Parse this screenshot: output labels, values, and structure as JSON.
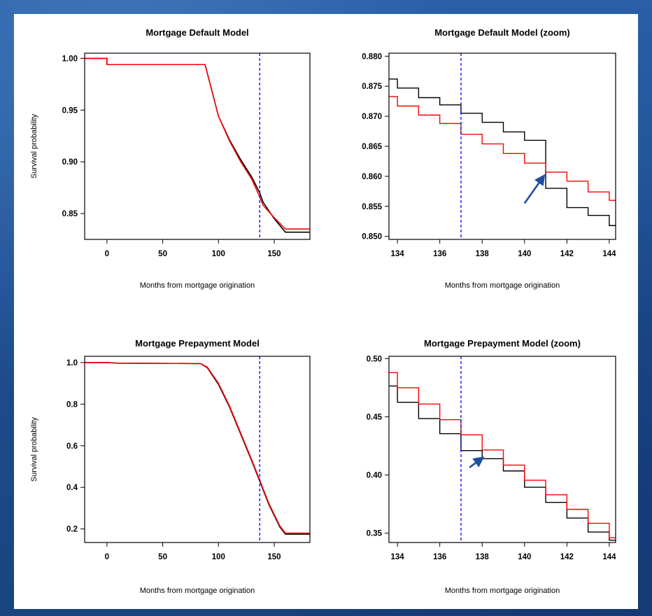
{
  "colors": {
    "model": "#000000",
    "observed": "#ff0000",
    "marker": "#0000ff",
    "arrow": "#1f4fa0"
  },
  "chart_data": [
    {
      "id": "default",
      "type": "line",
      "title": "Mortgage Default Model",
      "xlabel": "Months from mortgage origination",
      "ylabel": "Survival probability",
      "xlim": [
        -20,
        182
      ],
      "ylim": [
        0.825,
        1.005
      ],
      "xticks": [
        0,
        50,
        100,
        150
      ],
      "yticks": [
        0.85,
        0.9,
        0.95,
        1.0
      ],
      "ytick_labels": [
        "0.85",
        "0.90",
        "0.95",
        "1.00"
      ],
      "vline": 137,
      "series": [
        {
          "color": "#000000",
          "x": [
            -20,
            0,
            0,
            88,
            95,
            100,
            110,
            120,
            130,
            137,
            140,
            150,
            160,
            182
          ],
          "y": [
            1.0,
            1.0,
            0.994,
            0.994,
            0.965,
            0.944,
            0.921,
            0.902,
            0.885,
            0.87,
            0.861,
            0.845,
            0.832,
            0.832
          ]
        },
        {
          "color": "#ff0000",
          "x": [
            -20,
            0,
            0,
            88,
            95,
            100,
            110,
            120,
            130,
            137,
            140,
            150,
            160,
            182
          ],
          "y": [
            1.0,
            1.0,
            0.994,
            0.994,
            0.965,
            0.944,
            0.92,
            0.9,
            0.883,
            0.866,
            0.858,
            0.846,
            0.835,
            0.835
          ]
        }
      ]
    },
    {
      "id": "default-zoom",
      "type": "line",
      "title": "Mortgage Default Model (zoom)",
      "xlabel": "Months from mortgage origination",
      "ylabel": "",
      "xlim": [
        133.6,
        144.3
      ],
      "ylim": [
        0.8495,
        0.8805
      ],
      "xticks": [
        134,
        136,
        138,
        140,
        142,
        144
      ],
      "yticks": [
        0.85,
        0.855,
        0.86,
        0.865,
        0.87,
        0.875,
        0.88
      ],
      "ytick_labels": [
        "0.850",
        "0.855",
        "0.860",
        "0.865",
        "0.870",
        "0.875",
        "0.880"
      ],
      "vline": 137,
      "annotation": "arrow",
      "arrow": {
        "from": [
          140.0,
          0.8555
        ],
        "to": [
          140.9,
          0.86
        ]
      },
      "series": [
        {
          "color": "#000000",
          "step": true,
          "x": [
            133.6,
            134,
            135,
            136,
            137,
            138,
            139,
            140,
            141,
            142,
            143,
            144,
            144.3
          ],
          "y": [
            0.8762,
            0.8747,
            0.8731,
            0.8719,
            0.8705,
            0.869,
            0.8674,
            0.866,
            0.858,
            0.8548,
            0.8535,
            0.8518,
            0.8518
          ]
        },
        {
          "color": "#ff0000",
          "step": true,
          "x": [
            133.6,
            134,
            135,
            136,
            137,
            138,
            139,
            140,
            141,
            142,
            143,
            144,
            144.3
          ],
          "y": [
            0.8733,
            0.8717,
            0.8702,
            0.8688,
            0.867,
            0.8654,
            0.8638,
            0.8622,
            0.8607,
            0.8592,
            0.8574,
            0.856,
            0.856
          ]
        }
      ]
    },
    {
      "id": "prepayment",
      "type": "line",
      "title": "Mortgage Prepayment Model",
      "xlabel": "Months from mortgage origination",
      "ylabel": "Survival probability",
      "xlim": [
        -20,
        182
      ],
      "ylim": [
        0.135,
        1.03
      ],
      "xticks": [
        0,
        50,
        100,
        150
      ],
      "yticks": [
        0.2,
        0.4,
        0.6,
        0.8,
        1.0
      ],
      "ytick_labels": [
        "0.2",
        "0.4",
        "0.6",
        "0.8",
        "1.0"
      ],
      "vline": 137,
      "series": [
        {
          "color": "#000000",
          "x": [
            -20,
            0,
            10,
            84,
            90,
            100,
            110,
            120,
            130,
            137,
            145,
            155,
            160,
            182
          ],
          "y": [
            1.0,
            1.0,
            0.997,
            0.995,
            0.975,
            0.895,
            0.785,
            0.655,
            0.525,
            0.43,
            0.32,
            0.21,
            0.175,
            0.175
          ]
        },
        {
          "color": "#ff0000",
          "x": [
            -20,
            0,
            10,
            84,
            90,
            100,
            110,
            120,
            130,
            137,
            145,
            155,
            160,
            182
          ],
          "y": [
            1.0,
            1.0,
            0.997,
            0.995,
            0.978,
            0.9,
            0.79,
            0.66,
            0.53,
            0.435,
            0.325,
            0.215,
            0.18,
            0.18
          ]
        }
      ]
    },
    {
      "id": "prepayment-zoom",
      "type": "line",
      "title": "Mortgage Prepayment Model (zoom)",
      "xlabel": "Months from mortgage origination",
      "ylabel": "",
      "xlim": [
        133.6,
        144.3
      ],
      "ylim": [
        0.342,
        0.502
      ],
      "xticks": [
        134,
        136,
        138,
        140,
        142,
        144
      ],
      "yticks": [
        0.35,
        0.4,
        0.45,
        0.5
      ],
      "ytick_labels": [
        "0.35",
        "0.40",
        "0.45",
        "0.50"
      ],
      "vline": 137,
      "annotation": "arrow",
      "arrow": {
        "from": [
          137.4,
          0.4065
        ],
        "to": [
          138.0,
          0.4145
        ]
      },
      "series": [
        {
          "color": "#000000",
          "step": true,
          "x": [
            133.6,
            134,
            135,
            136,
            137,
            138,
            139,
            140,
            141,
            142,
            143,
            144,
            144.3
          ],
          "y": [
            0.4765,
            0.4625,
            0.4485,
            0.4355,
            0.421,
            0.414,
            0.4035,
            0.3895,
            0.3765,
            0.363,
            0.351,
            0.344,
            0.344
          ]
        },
        {
          "color": "#ff0000",
          "step": true,
          "x": [
            133.6,
            134,
            135,
            136,
            137,
            138,
            139,
            140,
            141,
            142,
            143,
            144,
            144.3
          ],
          "y": [
            0.488,
            0.475,
            0.461,
            0.4475,
            0.4345,
            0.4215,
            0.4085,
            0.3955,
            0.383,
            0.3705,
            0.3585,
            0.346,
            0.346
          ]
        }
      ]
    }
  ]
}
